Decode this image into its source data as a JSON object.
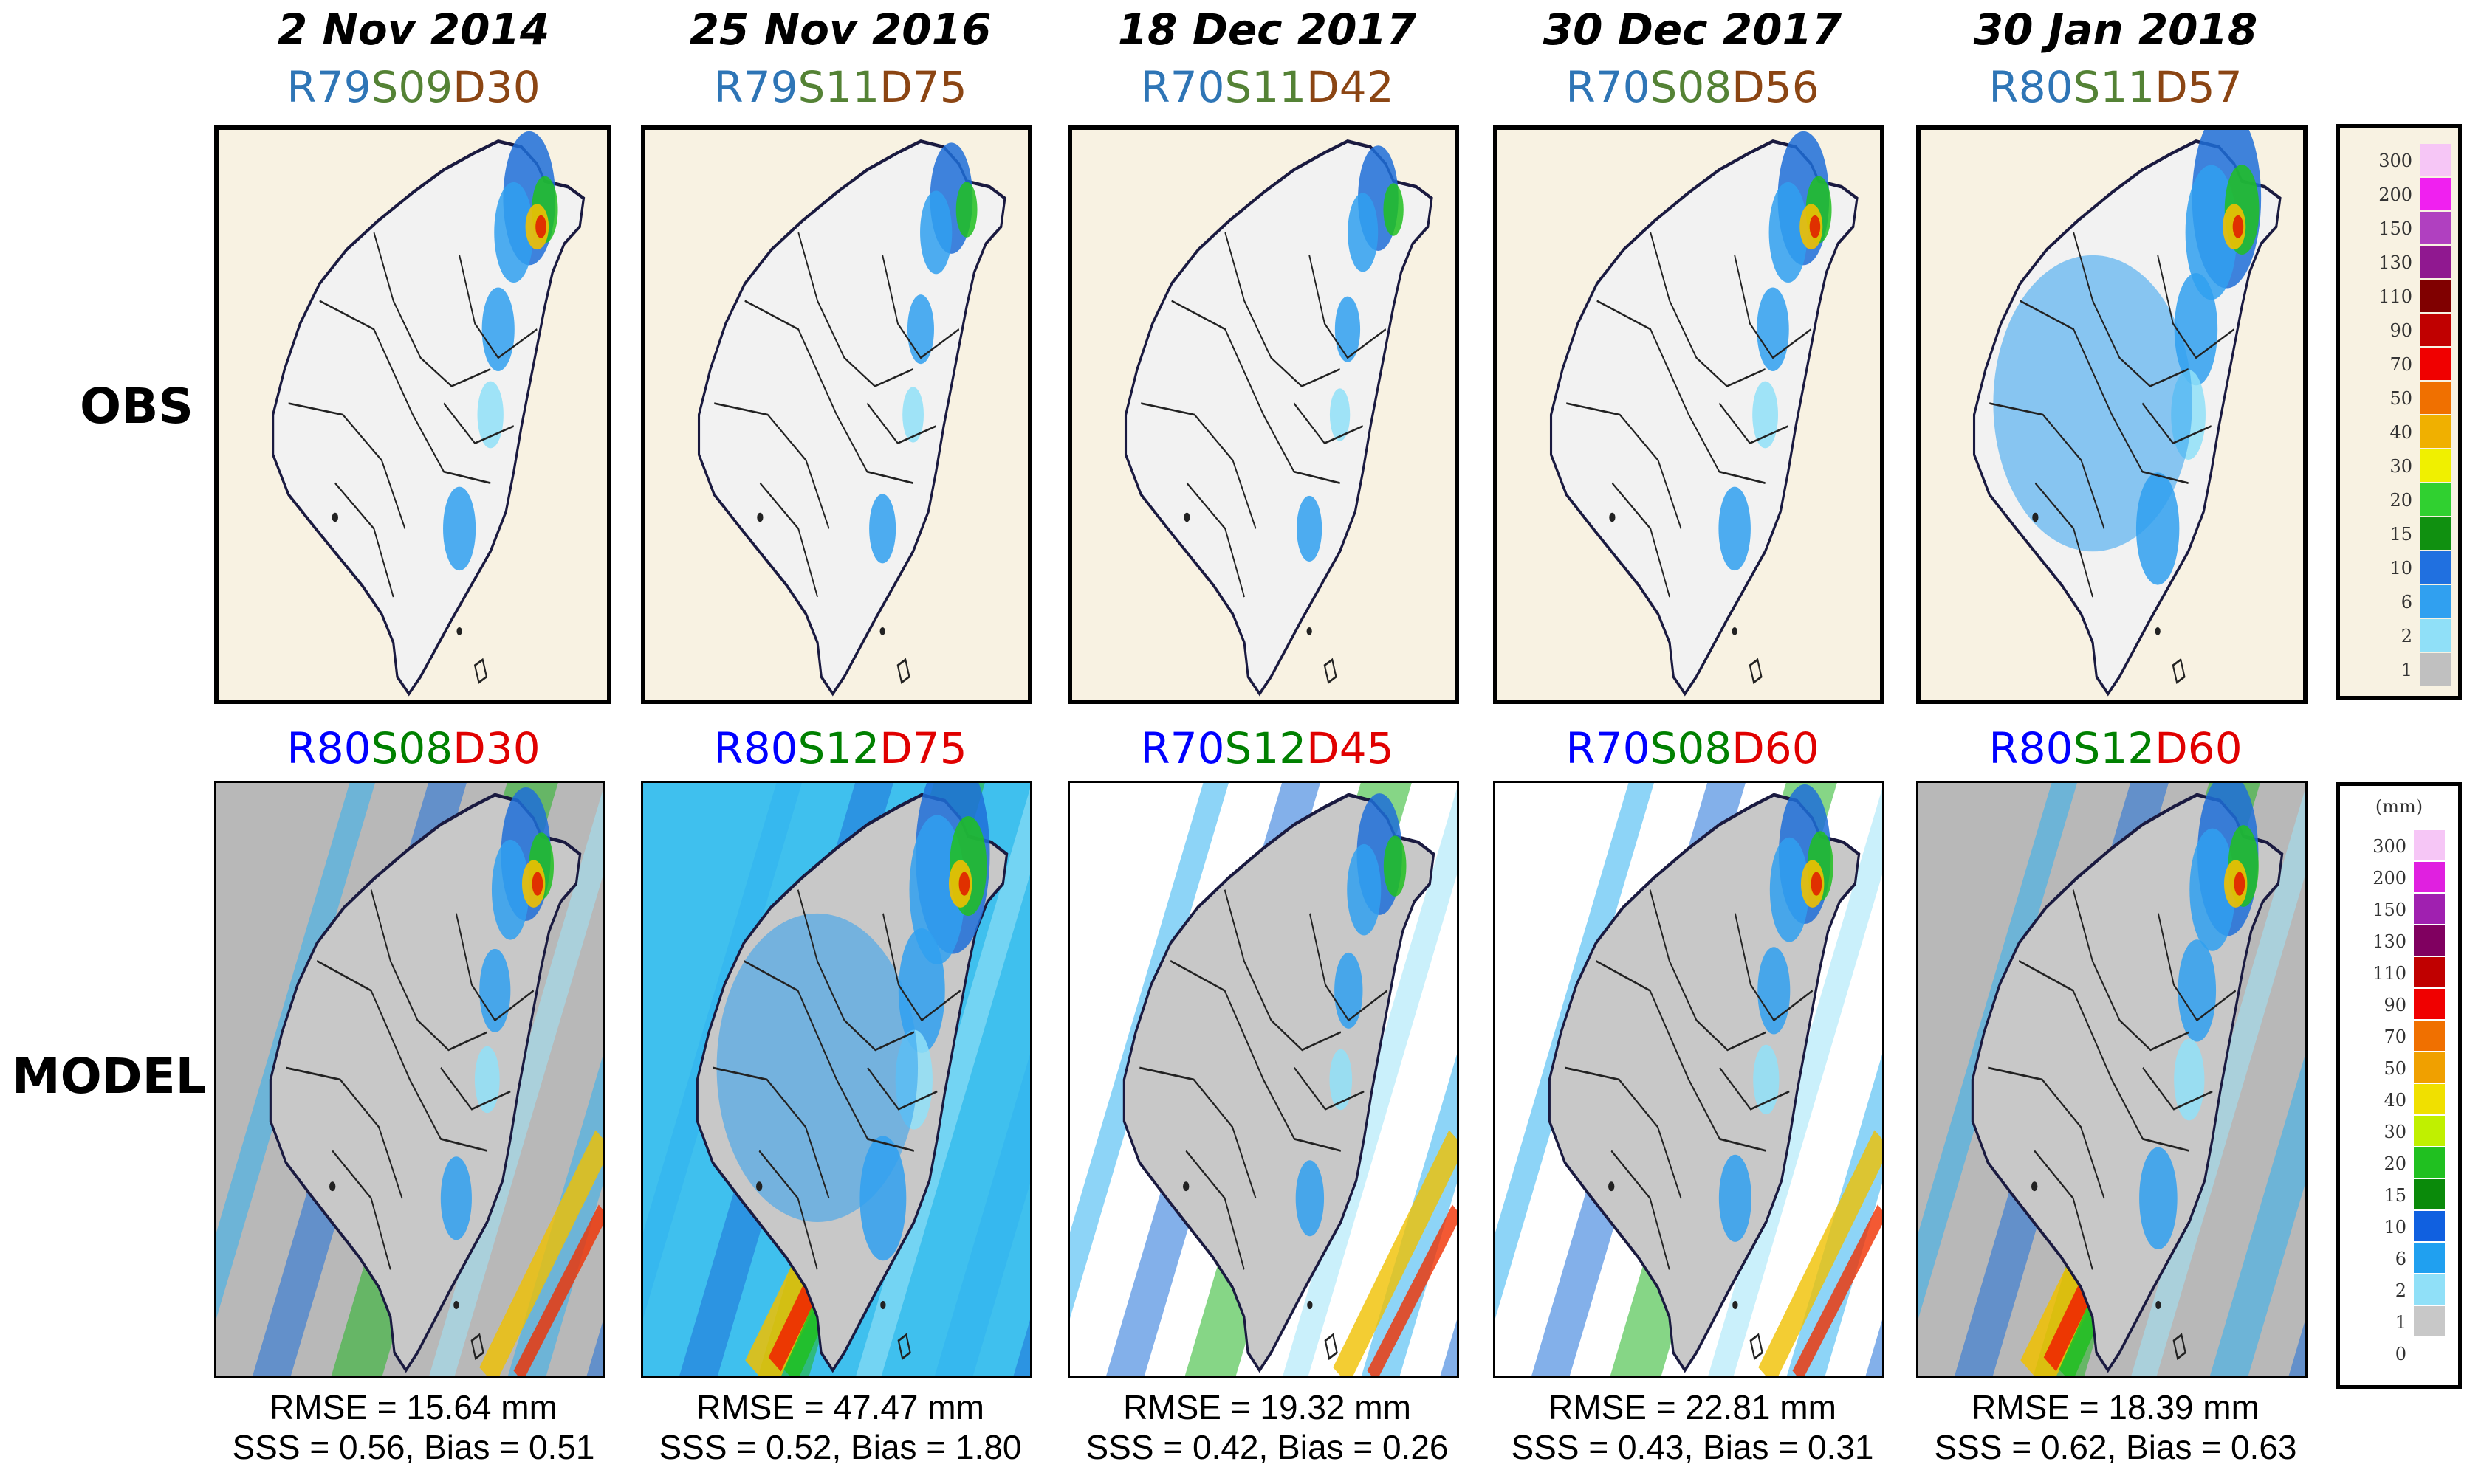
{
  "row_labels": {
    "obs": "OBS",
    "model": "MODEL"
  },
  "panels": [
    {
      "date": "2 Nov 2014",
      "obs_code": {
        "r": "R79",
        "s": "S09",
        "d": "D30"
      },
      "model_code": {
        "r": "R80",
        "s": "S08",
        "d": "D30"
      },
      "rmse": "RMSE = 15.64 mm",
      "sss_bias": "SSS = 0.56, Bias = 0.51",
      "obs_intensity": 0.5,
      "model_intensity": 0.45,
      "model_bg": "grey"
    },
    {
      "date": "25 Nov 2016",
      "obs_code": {
        "r": "R79",
        "s": "S11",
        "d": "D75"
      },
      "model_code": {
        "r": "R80",
        "s": "S12",
        "d": "D75"
      },
      "rmse": "RMSE = 47.47 mm",
      "sss_bias": "SSS = 0.52, Bias = 1.80",
      "obs_intensity": 0.3,
      "model_intensity": 1.0,
      "model_bg": "cyan"
    },
    {
      "date": "18 Dec 2017",
      "obs_code": {
        "r": "R70",
        "s": "S11",
        "d": "D42"
      },
      "model_code": {
        "r": "R70",
        "s": "S12",
        "d": "D45"
      },
      "rmse": "RMSE = 19.32 mm",
      "sss_bias": "SSS = 0.42, Bias = 0.26",
      "obs_intensity": 0.25,
      "model_intensity": 0.35,
      "model_bg": "white"
    },
    {
      "date": "30 Dec 2017",
      "obs_code": {
        "r": "R70",
        "s": "S08",
        "d": "D56"
      },
      "model_code": {
        "r": "R70",
        "s": "S08",
        "d": "D60"
      },
      "rmse": "RMSE = 22.81 mm",
      "sss_bias": "SSS = 0.43, Bias = 0.31",
      "obs_intensity": 0.5,
      "model_intensity": 0.5,
      "model_bg": "white"
    },
    {
      "date": "30 Jan 2018",
      "obs_code": {
        "r": "R80",
        "s": "S11",
        "d": "D57"
      },
      "model_code": {
        "r": "R80",
        "s": "S12",
        "d": "D60"
      },
      "rmse": "RMSE = 18.39 mm",
      "sss_bias": "SSS = 0.62, Bias = 0.63",
      "obs_intensity": 0.9,
      "model_intensity": 0.7,
      "model_bg": "grey"
    }
  ],
  "legend_obs": {
    "labels": [
      "300",
      "200",
      "150",
      "130",
      "110",
      "90",
      "70",
      "50",
      "40",
      "30",
      "20",
      "15",
      "10",
      "6",
      "2",
      "1"
    ],
    "colors": [
      "#f6c6f6",
      "#f020f0",
      "#b040c0",
      "#901890",
      "#800000",
      "#c00000",
      "#f00000",
      "#f07000",
      "#f0b000",
      "#f0f000",
      "#30d030",
      "#109010",
      "#2070e0",
      "#30a0f0",
      "#90e0f8",
      "#c0c0c0"
    ]
  },
  "legend_model": {
    "unit": "(mm)",
    "labels": [
      "300",
      "200",
      "150",
      "130",
      "110",
      "90",
      "70",
      "50",
      "40",
      "30",
      "20",
      "15",
      "10",
      "6",
      "2",
      "1",
      "0"
    ],
    "colors": [
      "#f6c6f6",
      "#e020e0",
      "#a020b0",
      "#800060",
      "#c00000",
      "#f00000",
      "#f07000",
      "#f0a000",
      "#f0e000",
      "#c0f000",
      "#20c020",
      "#0a8a0a",
      "#1060e0",
      "#20a0f0",
      "#90e0f8",
      "#c8c8c8",
      "#ffffff"
    ]
  },
  "colors": {
    "r_obs": "#2e75b6",
    "s_obs": "#548235",
    "d_obs": "#8b4513",
    "r_model": "#0000ff",
    "s_model": "#008000",
    "d_model": "#e00000"
  }
}
